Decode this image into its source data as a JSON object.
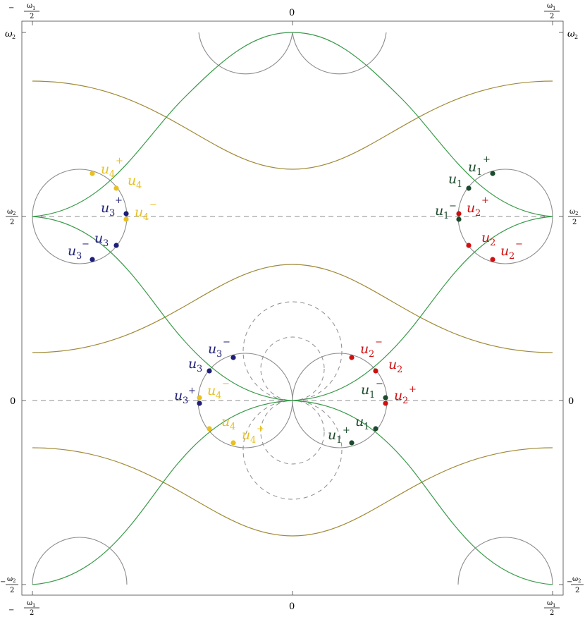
{
  "axes": {
    "x_left_num": "ω",
    "x_left_sub": "1",
    "x_left_den": "2",
    "x_left_sign": "−",
    "x_center": "0",
    "x_right_num": "ω",
    "x_right_sub": "1",
    "x_right_den": "2",
    "y_top": "ω",
    "y_top_sub": "2",
    "y_mid_num": "ω",
    "y_mid_sub": "2",
    "y_mid_den": "2",
    "y_zero": "0",
    "y_bottom_sign": "−",
    "y_bottom_num": "ω",
    "y_bottom_sub": "2",
    "y_bottom_den": "2"
  },
  "colors": {
    "green": "#3a9a4a",
    "olive": "#a08a38",
    "gray": "#8c8c8c",
    "dashed": "#8c8c8c",
    "navy": "#1e1e78",
    "yellow": "#e8c020",
    "red": "#d01010",
    "darkgreen": "#1c4a2c"
  },
  "labels": {
    "u": "u",
    "n1": "1",
    "n2": "2",
    "n3": "3",
    "n4": "4",
    "plus": "+",
    "minus": "−"
  }
}
